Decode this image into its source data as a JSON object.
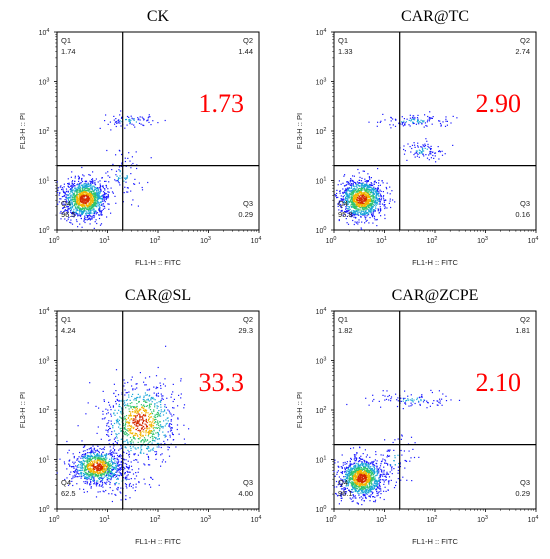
{
  "colors": {
    "highlight": "#ff0000",
    "dots_dense": "#d42a00",
    "dots_sparse": "#1a1aff"
  },
  "chart_data": [
    {
      "type": "scatter",
      "title": "CK",
      "xlabel": "FL1-H :: FITC",
      "ylabel": "FL3-H :: PI",
      "x_scale": "log",
      "y_scale": "log",
      "xlim": [
        1,
        10000
      ],
      "ylim": [
        1,
        10000
      ],
      "gate": {
        "x": 20,
        "y": 20
      },
      "quadrants": [
        {
          "label": "Q1",
          "value": "1.74"
        },
        {
          "label": "Q2",
          "value": "1.44"
        },
        {
          "label": "Q3",
          "value": "0.29"
        },
        {
          "label": "Q4",
          "value": "96.5"
        }
      ],
      "highlight_value": "1.73",
      "clusters": [
        {
          "cx": 0.55,
          "cy": 0.62,
          "sx": 0.22,
          "sy": 0.2,
          "n": 1200
        },
        {
          "cx": 1.45,
          "cy": 2.2,
          "sx": 0.35,
          "sy": 0.07,
          "n": 80
        },
        {
          "cx": 1.3,
          "cy": 1.1,
          "sx": 0.2,
          "sy": 0.25,
          "n": 90
        }
      ]
    },
    {
      "type": "scatter",
      "title": "CAR@TC",
      "xlabel": "FL1-H :: FITC",
      "ylabel": "FL3-H :: PI",
      "x_scale": "log",
      "y_scale": "log",
      "xlim": [
        1,
        10000
      ],
      "ylim": [
        1,
        10000
      ],
      "gate": {
        "x": 20,
        "y": 20
      },
      "quadrants": [
        {
          "label": "Q1",
          "value": "1.33"
        },
        {
          "label": "Q2",
          "value": "2.74"
        },
        {
          "label": "Q3",
          "value": "0.16"
        },
        {
          "label": "Q4",
          "value": "95.8"
        }
      ],
      "highlight_value": "2.90",
      "clusters": [
        {
          "cx": 0.55,
          "cy": 0.62,
          "sx": 0.22,
          "sy": 0.2,
          "n": 1200
        },
        {
          "cx": 1.55,
          "cy": 2.2,
          "sx": 0.4,
          "sy": 0.07,
          "n": 110
        },
        {
          "cx": 1.75,
          "cy": 1.6,
          "sx": 0.2,
          "sy": 0.1,
          "n": 90
        }
      ]
    },
    {
      "type": "scatter",
      "title": "CAR@SL",
      "xlabel": "FL1-H :: FITC",
      "ylabel": "FL3-H :: PI",
      "x_scale": "log",
      "y_scale": "log",
      "xlim": [
        1,
        10000
      ],
      "ylim": [
        1,
        10000
      ],
      "gate": {
        "x": 20,
        "y": 20
      },
      "quadrants": [
        {
          "label": "Q1",
          "value": "4.24"
        },
        {
          "label": "Q2",
          "value": "29.3"
        },
        {
          "label": "Q3",
          "value": "4.00"
        },
        {
          "label": "Q4",
          "value": "62.5"
        }
      ],
      "highlight_value": "33.3",
      "clusters": [
        {
          "cx": 0.8,
          "cy": 0.85,
          "sx": 0.25,
          "sy": 0.18,
          "n": 900
        },
        {
          "cx": 1.65,
          "cy": 1.75,
          "sx": 0.35,
          "sy": 0.4,
          "n": 900
        },
        {
          "cx": 1.2,
          "cy": 0.6,
          "sx": 0.3,
          "sy": 0.2,
          "n": 120
        }
      ]
    },
    {
      "type": "scatter",
      "title": "CAR@ZCPE",
      "xlabel": "FL1-H :: FITC",
      "ylabel": "FL3-H :: PI",
      "x_scale": "log",
      "y_scale": "log",
      "xlim": [
        1,
        10000
      ],
      "ylim": [
        1,
        10000
      ],
      "gate": {
        "x": 20,
        "y": 20
      },
      "quadrants": [
        {
          "label": "Q1",
          "value": "1.82"
        },
        {
          "label": "Q2",
          "value": "1.81"
        },
        {
          "label": "Q3",
          "value": "0.29"
        },
        {
          "label": "Q4",
          "value": "96.1"
        }
      ],
      "highlight_value": "2.10",
      "clusters": [
        {
          "cx": 0.55,
          "cy": 0.62,
          "sx": 0.22,
          "sy": 0.2,
          "n": 1200
        },
        {
          "cx": 1.55,
          "cy": 2.2,
          "sx": 0.4,
          "sy": 0.07,
          "n": 100
        },
        {
          "cx": 1.2,
          "cy": 1.0,
          "sx": 0.2,
          "sy": 0.25,
          "n": 80
        }
      ]
    }
  ]
}
